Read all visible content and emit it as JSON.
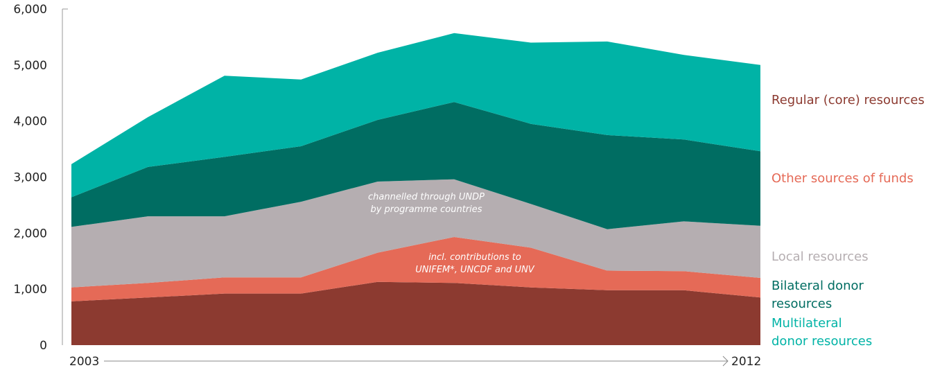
{
  "chart_data": {
    "type": "area",
    "stacked": true,
    "x": [
      2003,
      2004,
      2005,
      2006,
      2007,
      2008,
      2009,
      2010,
      2011,
      2012
    ],
    "x_tick_labels": [
      "2003",
      "2012"
    ],
    "ylim": [
      0,
      6000
    ],
    "y_ticks": [
      "0",
      "1,000",
      "2,000",
      "3,000",
      "4,000",
      "5,000",
      "6,000"
    ],
    "grid": false,
    "legend_placement": "right",
    "series": [
      {
        "name": "Regular (core) resources",
        "color": "#8c3a30",
        "values": [
          780,
          850,
          920,
          920,
          1130,
          1110,
          1030,
          980,
          980,
          850
        ]
      },
      {
        "name": "Other sources of funds",
        "color": "#e56a57",
        "values": [
          250,
          260,
          290,
          290,
          520,
          820,
          710,
          350,
          340,
          350
        ]
      },
      {
        "name": "Local resources",
        "color": "#b5aeb1",
        "values": [
          1080,
          1190,
          1090,
          1350,
          1270,
          1030,
          780,
          740,
          890,
          930
        ]
      },
      {
        "name": "Bilateral donor resources",
        "color": "#006d62",
        "values": [
          530,
          880,
          1060,
          990,
          1100,
          1380,
          1430,
          1680,
          1460,
          1330
        ]
      },
      {
        "name": "Multilateral donor resources",
        "color": "#00b3a6",
        "values": [
          590,
          890,
          1450,
          1190,
          1200,
          1230,
          1450,
          1670,
          1510,
          1540
        ]
      }
    ],
    "annotations": [
      {
        "text": "channelled through UNDP\nby programme countries"
      },
      {
        "text": "incl. contributions to\nUNIFEM*, UNCDF and UNV"
      }
    ]
  }
}
